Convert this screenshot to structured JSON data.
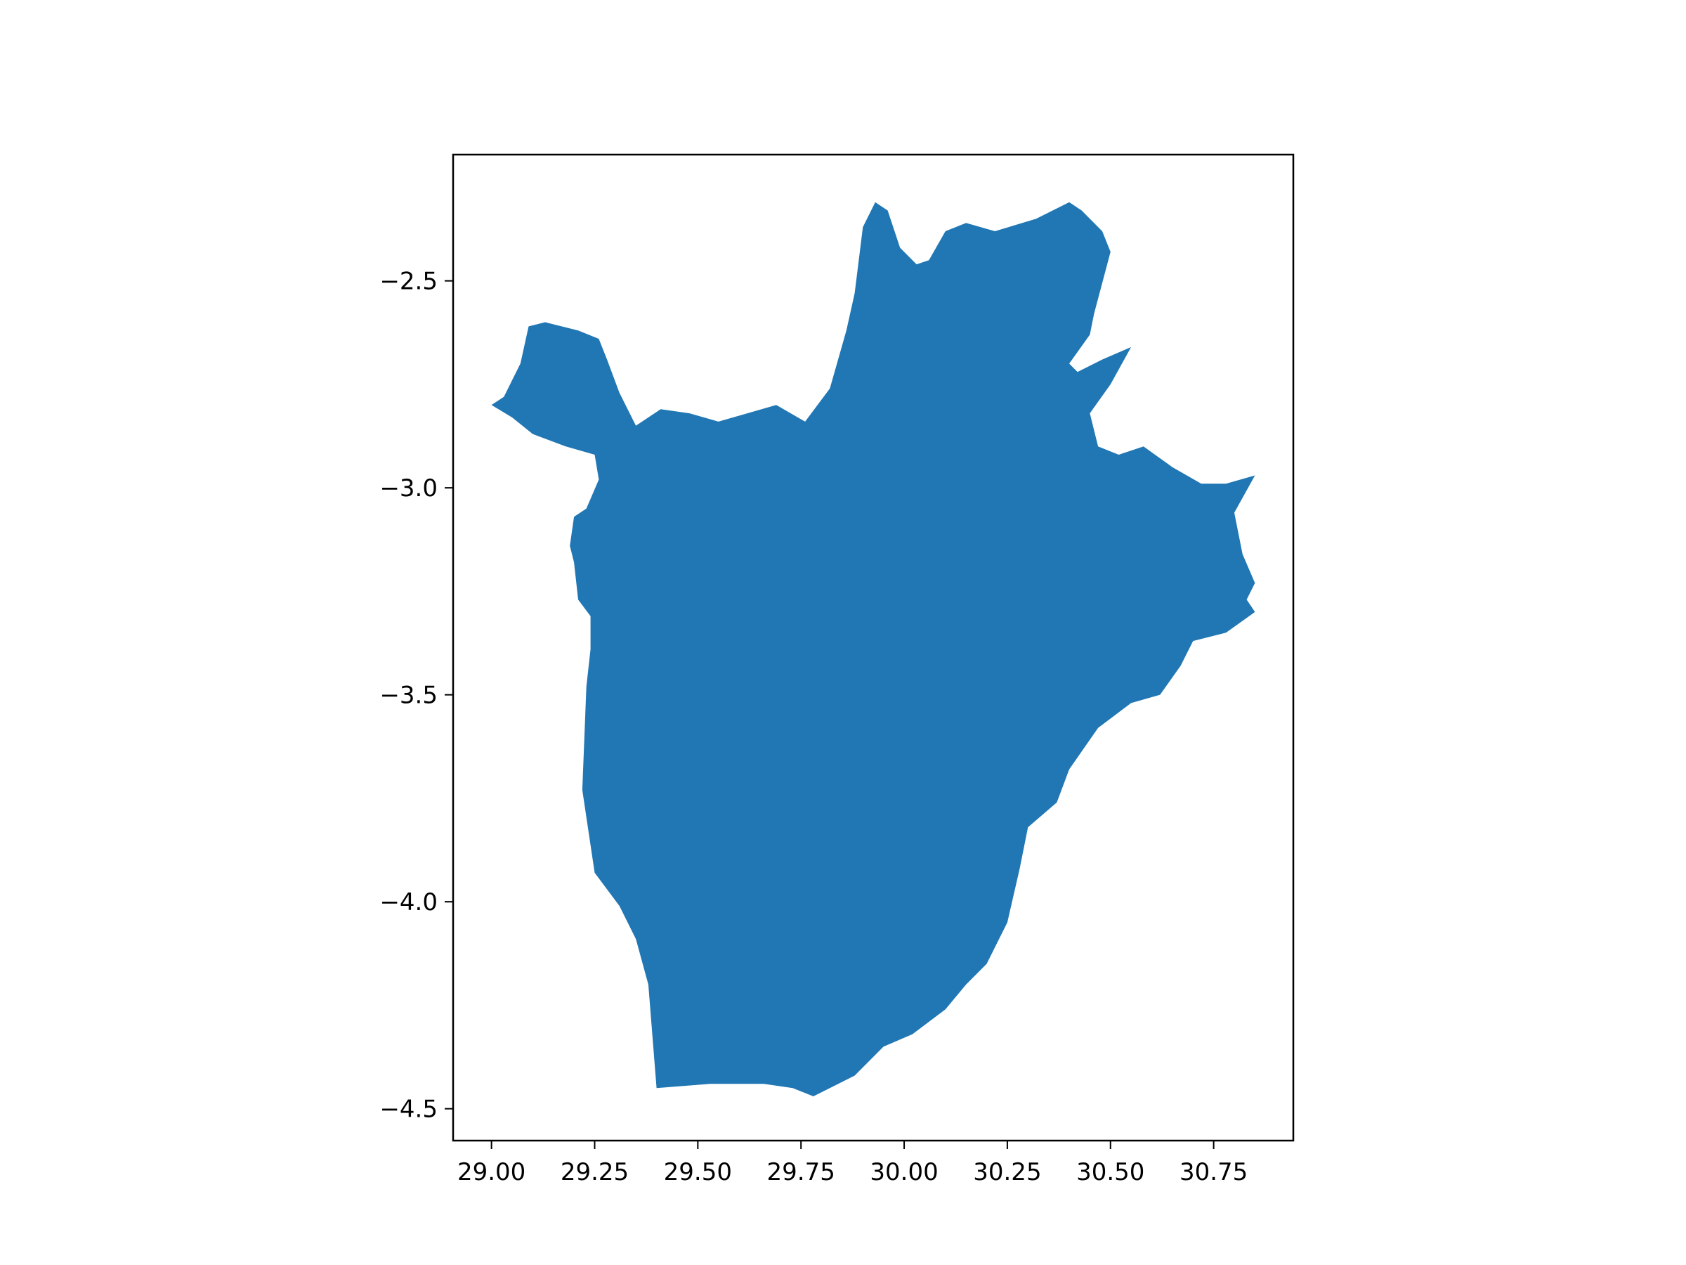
{
  "chart_data": {
    "type": "map",
    "title": "",
    "xlabel": "",
    "ylabel": "",
    "xlim": [
      28.907,
      30.943
    ],
    "ylim": [
      -4.577,
      -2.195
    ],
    "xticks": [
      29.0,
      29.25,
      29.5,
      29.75,
      30.0,
      30.25,
      30.5,
      30.75
    ],
    "xtick_labels": [
      "29.00",
      "29.25",
      "29.50",
      "29.75",
      "30.00",
      "30.25",
      "30.50",
      "30.75"
    ],
    "yticks": [
      -2.5,
      -3.0,
      -3.5,
      -4.0,
      -4.5
    ],
    "ytick_labels": [
      "−2.5",
      "−3.0",
      "−3.5",
      "−4.0",
      "−4.5"
    ],
    "grid": false,
    "legend": "none",
    "fill_color": "#2077b4",
    "series": [
      {
        "x": [
          29.0,
          29.03,
          29.05,
          29.07,
          29.09,
          29.13,
          29.17,
          29.21,
          29.26,
          29.28,
          29.31,
          29.35,
          29.41,
          29.48,
          29.55,
          29.62,
          29.69,
          29.76,
          29.82,
          29.86,
          29.88,
          29.9,
          29.93,
          29.96,
          29.99,
          30.03,
          30.06,
          30.1,
          30.15,
          30.22,
          30.32,
          30.4,
          30.43,
          30.48,
          30.5,
          30.46,
          30.45,
          30.4,
          30.42,
          30.48,
          30.55,
          30.5,
          30.45,
          30.47,
          30.52,
          30.58,
          30.65,
          30.72,
          30.78,
          30.85,
          30.8,
          30.82,
          30.85,
          30.83,
          30.85,
          30.78,
          30.7,
          30.67,
          30.62,
          30.55,
          30.47,
          30.4,
          30.37,
          30.3,
          30.28,
          30.25,
          30.2,
          30.15,
          30.1,
          30.02,
          29.95,
          29.88,
          29.82,
          29.78,
          29.73,
          29.66,
          29.53,
          29.4,
          29.38,
          29.35,
          29.31,
          29.25,
          29.22,
          29.23,
          29.24,
          29.24,
          29.21,
          29.2,
          29.19,
          29.2,
          29.23,
          29.26,
          29.25,
          29.18,
          29.1,
          29.05,
          29.0
        ],
        "y": [
          -2.8,
          -2.78,
          -2.74,
          -2.7,
          -2.61,
          -2.6,
          -2.61,
          -2.62,
          -2.64,
          -2.69,
          -2.77,
          -2.85,
          -2.81,
          -2.82,
          -2.84,
          -2.82,
          -2.8,
          -2.84,
          -2.76,
          -2.62,
          -2.53,
          -2.37,
          -2.31,
          -2.33,
          -2.42,
          -2.46,
          -2.45,
          -2.38,
          -2.36,
          -2.38,
          -2.35,
          -2.31,
          -2.33,
          -2.38,
          -2.43,
          -2.58,
          -2.63,
          -2.7,
          -2.72,
          -2.69,
          -2.66,
          -2.75,
          -2.82,
          -2.9,
          -2.92,
          -2.9,
          -2.95,
          -2.99,
          -2.99,
          -2.97,
          -3.06,
          -3.16,
          -3.23,
          -3.27,
          -3.3,
          -3.35,
          -3.37,
          -3.43,
          -3.5,
          -3.52,
          -3.58,
          -3.68,
          -3.76,
          -3.82,
          -3.92,
          -4.05,
          -4.15,
          -4.2,
          -4.26,
          -4.32,
          -4.35,
          -4.42,
          -4.45,
          -4.47,
          -4.45,
          -4.44,
          -4.44,
          -4.45,
          -4.2,
          -4.09,
          -4.01,
          -3.93,
          -3.73,
          -3.48,
          -3.39,
          -3.31,
          -3.27,
          -3.18,
          -3.14,
          -3.07,
          -3.05,
          -2.98,
          -2.92,
          -2.9,
          -2.87,
          -2.83,
          -2.8
        ]
      }
    ]
  }
}
